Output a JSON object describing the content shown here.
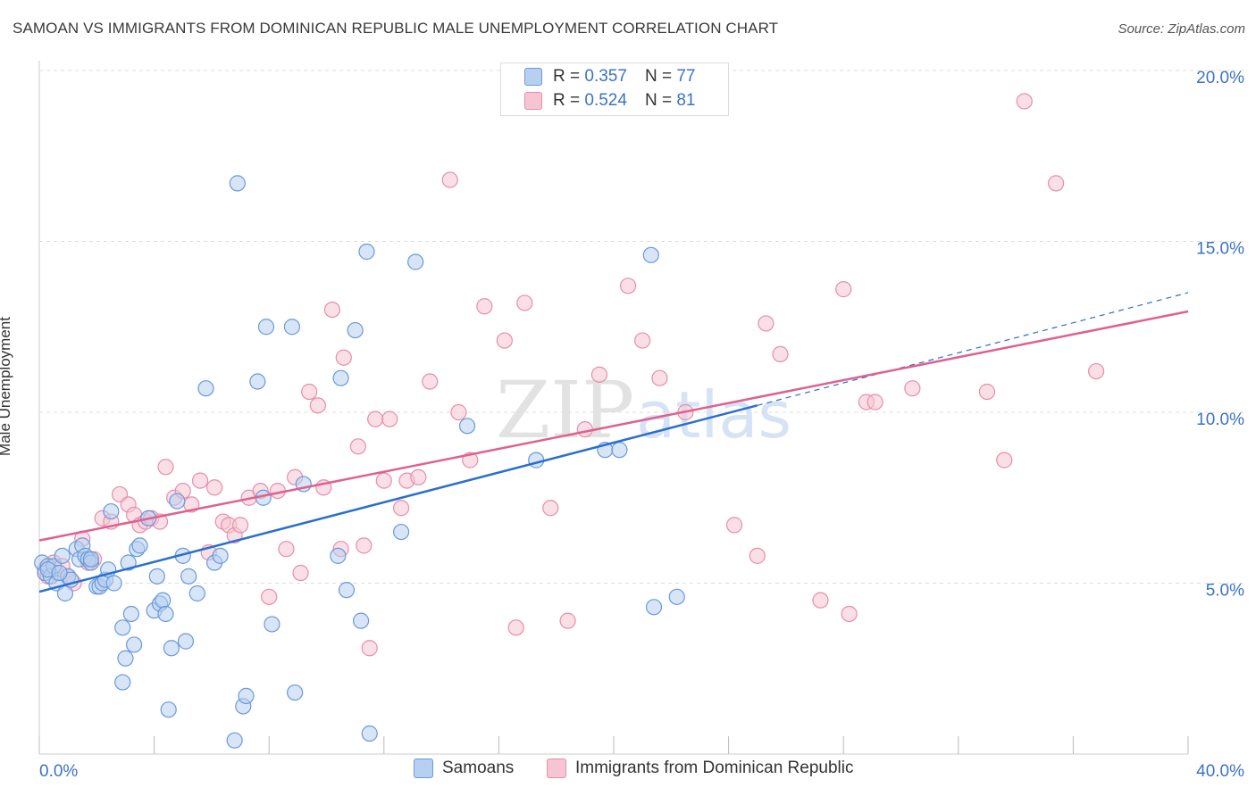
{
  "title": "SAMOAN VS IMMIGRANTS FROM DOMINICAN REPUBLIC MALE UNEMPLOYMENT CORRELATION CHART",
  "source": "Source: ZipAtlas.com",
  "watermark": {
    "zip": "ZIP",
    "atlas": "atlas"
  },
  "legend_top": [
    {
      "r_label": "R =",
      "r_value": "0.357",
      "n_label": "N =",
      "n_value": "77"
    },
    {
      "r_label": "R =",
      "r_value": "0.524",
      "n_label": "N =",
      "n_value": "81"
    }
  ],
  "legend_bottom": [
    "Samoans",
    "Immigrants from Dominican Republic"
  ],
  "colors": {
    "samoan_fill": "#b7cff0",
    "samoan_stroke": "#6a9ad8",
    "samoan_line": "#2a6fcf",
    "dominican_fill": "#f7c4d4",
    "dominican_stroke": "#e58eab",
    "dominican_line": "#e0608e",
    "tick_label": "#3b72c6",
    "grid": "#dddddd"
  },
  "chart_data": {
    "type": "scatter",
    "xlabel": "",
    "ylabel": "Male Unemployment",
    "xlim": [
      0,
      40
    ],
    "ylim": [
      0,
      20
    ],
    "x_tick_labels": [
      {
        "value": 0,
        "label": "0.0%"
      },
      {
        "value": 40,
        "label": "40.0%"
      }
    ],
    "y_tick_labels": [
      {
        "value": 5,
        "label": "5.0%"
      },
      {
        "value": 10,
        "label": "10.0%"
      },
      {
        "value": 15,
        "label": "15.0%"
      },
      {
        "value": 20,
        "label": "20.0%"
      }
    ],
    "grid": true,
    "legend_position": "top-center",
    "series": [
      {
        "name": "Samoans",
        "r": 0.357,
        "n": 77,
        "trend": {
          "x": [
            0,
            25
          ],
          "y": [
            4.75,
            10.2
          ]
        },
        "trend_extension": {
          "x": [
            25,
            40
          ],
          "y": [
            10.2,
            13.5
          ]
        },
        "points": [
          [
            0.1,
            5.6
          ],
          [
            0.2,
            5.3
          ],
          [
            0.3,
            5.5
          ],
          [
            0.4,
            5.2
          ],
          [
            0.5,
            5.5
          ],
          [
            0.6,
            5.0
          ],
          [
            0.8,
            5.8
          ],
          [
            0.9,
            4.7
          ],
          [
            1.0,
            5.2
          ],
          [
            1.1,
            5.1
          ],
          [
            1.3,
            6.0
          ],
          [
            1.4,
            5.7
          ],
          [
            1.5,
            6.1
          ],
          [
            1.6,
            5.8
          ],
          [
            1.7,
            5.7
          ],
          [
            1.8,
            5.6
          ],
          [
            2.0,
            4.9
          ],
          [
            2.1,
            4.9
          ],
          [
            2.2,
            5.0
          ],
          [
            2.3,
            5.1
          ],
          [
            2.4,
            5.4
          ],
          [
            2.5,
            7.1
          ],
          [
            2.6,
            5.0
          ],
          [
            2.9,
            3.7
          ],
          [
            3.0,
            2.8
          ],
          [
            3.1,
            5.6
          ],
          [
            3.2,
            4.1
          ],
          [
            3.3,
            3.2
          ],
          [
            3.4,
            6.0
          ],
          [
            3.5,
            6.1
          ],
          [
            2.9,
            2.1
          ],
          [
            3.8,
            6.9
          ],
          [
            4.0,
            4.2
          ],
          [
            4.1,
            5.2
          ],
          [
            4.2,
            4.4
          ],
          [
            4.3,
            4.5
          ],
          [
            4.4,
            4.1
          ],
          [
            4.5,
            1.3
          ],
          [
            4.6,
            3.1
          ],
          [
            4.8,
            7.4
          ],
          [
            5.0,
            5.8
          ],
          [
            5.1,
            3.3
          ],
          [
            5.2,
            5.2
          ],
          [
            5.5,
            4.7
          ],
          [
            5.8,
            10.7
          ],
          [
            6.1,
            5.6
          ],
          [
            6.3,
            5.8
          ],
          [
            6.8,
            0.4
          ],
          [
            6.9,
            16.7
          ],
          [
            7.1,
            1.4
          ],
          [
            7.2,
            1.7
          ],
          [
            7.6,
            10.9
          ],
          [
            7.8,
            7.5
          ],
          [
            7.9,
            12.5
          ],
          [
            8.1,
            3.8
          ],
          [
            8.8,
            12.5
          ],
          [
            8.9,
            1.8
          ],
          [
            9.2,
            7.9
          ],
          [
            10.4,
            5.8
          ],
          [
            10.5,
            11.0
          ],
          [
            10.7,
            4.8
          ],
          [
            11.0,
            12.4
          ],
          [
            11.2,
            3.9
          ],
          [
            11.4,
            14.7
          ],
          [
            11.5,
            0.6
          ],
          [
            12.6,
            6.5
          ],
          [
            13.1,
            14.4
          ],
          [
            14.9,
            9.6
          ],
          [
            17.3,
            8.6
          ],
          [
            19.7,
            8.9
          ],
          [
            20.2,
            8.9
          ],
          [
            21.3,
            14.6
          ],
          [
            21.4,
            4.3
          ],
          [
            22.2,
            4.6
          ],
          [
            1.8,
            5.7
          ],
          [
            0.3,
            5.4
          ],
          [
            0.7,
            5.3
          ]
        ]
      },
      {
        "name": "Immigrants from Dominican Republic",
        "r": 0.524,
        "n": 81,
        "trend": {
          "x": [
            0,
            40
          ],
          "y": [
            6.25,
            12.95
          ]
        },
        "points": [
          [
            0.2,
            5.4
          ],
          [
            0.3,
            5.2
          ],
          [
            0.5,
            5.6
          ],
          [
            0.6,
            5.3
          ],
          [
            0.8,
            5.5
          ],
          [
            1.0,
            5.2
          ],
          [
            1.2,
            5.0
          ],
          [
            1.5,
            6.3
          ],
          [
            1.7,
            5.6
          ],
          [
            1.9,
            5.7
          ],
          [
            2.2,
            6.9
          ],
          [
            2.5,
            6.8
          ],
          [
            2.8,
            7.6
          ],
          [
            3.1,
            7.3
          ],
          [
            3.3,
            7.0
          ],
          [
            3.5,
            6.7
          ],
          [
            3.7,
            6.8
          ],
          [
            3.9,
            6.9
          ],
          [
            4.2,
            6.8
          ],
          [
            4.4,
            8.4
          ],
          [
            4.7,
            7.5
          ],
          [
            5.0,
            7.7
          ],
          [
            5.3,
            7.3
          ],
          [
            5.6,
            8.0
          ],
          [
            5.9,
            5.9
          ],
          [
            6.1,
            7.8
          ],
          [
            6.4,
            6.8
          ],
          [
            6.6,
            6.7
          ],
          [
            6.8,
            6.4
          ],
          [
            7.0,
            6.7
          ],
          [
            7.3,
            7.5
          ],
          [
            7.7,
            7.7
          ],
          [
            8.0,
            4.6
          ],
          [
            8.3,
            7.7
          ],
          [
            8.6,
            6.0
          ],
          [
            8.9,
            8.1
          ],
          [
            9.1,
            5.3
          ],
          [
            9.4,
            10.6
          ],
          [
            9.7,
            10.2
          ],
          [
            9.9,
            7.8
          ],
          [
            10.2,
            13.0
          ],
          [
            10.5,
            6.0
          ],
          [
            10.6,
            11.6
          ],
          [
            11.1,
            9.0
          ],
          [
            11.3,
            6.1
          ],
          [
            11.5,
            3.1
          ],
          [
            11.7,
            9.8
          ],
          [
            12.0,
            8.0
          ],
          [
            12.2,
            9.8
          ],
          [
            12.6,
            7.2
          ],
          [
            12.8,
            8.0
          ],
          [
            13.2,
            8.1
          ],
          [
            13.6,
            10.9
          ],
          [
            14.3,
            16.8
          ],
          [
            14.6,
            10.0
          ],
          [
            15.0,
            8.6
          ],
          [
            15.5,
            13.1
          ],
          [
            16.2,
            12.1
          ],
          [
            16.6,
            3.7
          ],
          [
            16.9,
            13.2
          ],
          [
            17.8,
            7.2
          ],
          [
            18.4,
            3.9
          ],
          [
            19.0,
            9.5
          ],
          [
            19.5,
            11.1
          ],
          [
            20.5,
            13.7
          ],
          [
            21.0,
            12.1
          ],
          [
            21.6,
            11.0
          ],
          [
            22.5,
            10.0
          ],
          [
            24.2,
            6.7
          ],
          [
            25.0,
            5.8
          ],
          [
            25.3,
            12.6
          ],
          [
            25.8,
            11.7
          ],
          [
            27.2,
            4.5
          ],
          [
            28.0,
            13.6
          ],
          [
            28.2,
            4.1
          ],
          [
            28.8,
            10.3
          ],
          [
            29.1,
            10.3
          ],
          [
            30.4,
            10.7
          ],
          [
            33.0,
            10.6
          ],
          [
            33.6,
            8.6
          ],
          [
            34.3,
            19.1
          ]
        ]
      }
    ]
  },
  "extra_dominican_points": [
    [
      35.4,
      16.7
    ],
    [
      36.8,
      11.2
    ]
  ]
}
